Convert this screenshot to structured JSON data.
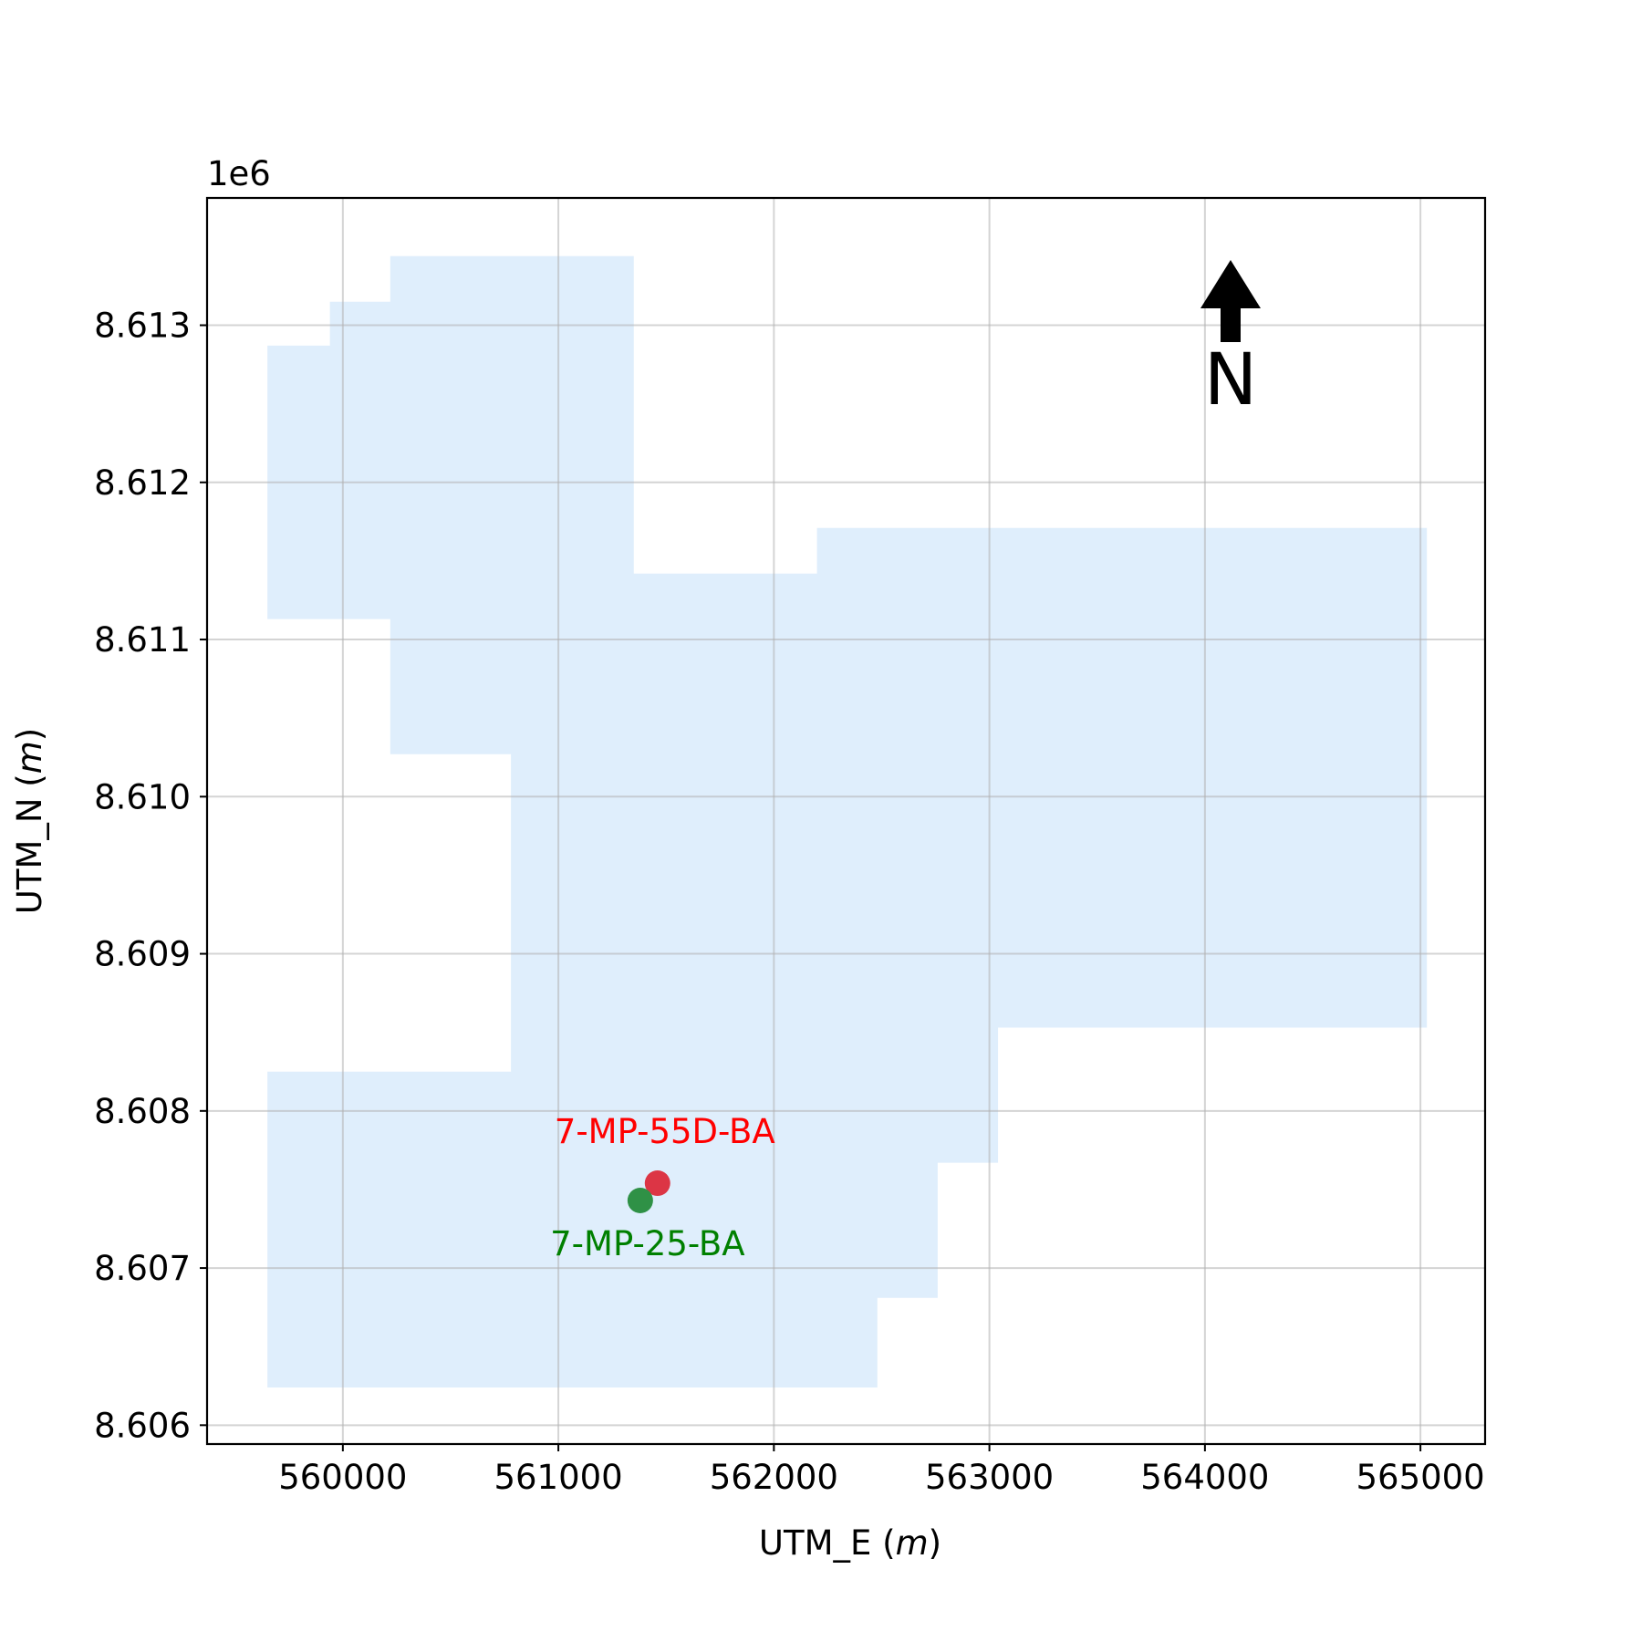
{
  "chart_data": {
    "type": "scatter",
    "xlabel": "UTM_E",
    "ylabel": "UTM_N",
    "unit": "m",
    "offset_label": "1e6",
    "xlim": [
      559370,
      565300
    ],
    "ylim": [
      8605880,
      8613810
    ],
    "x_ticks": [
      560000,
      561000,
      562000,
      563000,
      564000,
      565000
    ],
    "y_ticks": [
      8606000,
      8607000,
      8608000,
      8609000,
      8610000,
      8611000,
      8612000,
      8613000
    ],
    "y_tick_labels": [
      "8.606",
      "8.607",
      "8.608",
      "8.609",
      "8.610",
      "8.611",
      "8.612",
      "8.613"
    ],
    "grid": true,
    "north_arrow": {
      "label": "N"
    },
    "area": {
      "color": "#dfeefc",
      "polygon": [
        [
          559650,
          8612870
        ],
        [
          559940,
          8612870
        ],
        [
          559940,
          8613150
        ],
        [
          560220,
          8613150
        ],
        [
          560220,
          8613440
        ],
        [
          561350,
          8613440
        ],
        [
          561350,
          8611420
        ],
        [
          562200,
          8611420
        ],
        [
          562200,
          8611710
        ],
        [
          565030,
          8611710
        ],
        [
          565030,
          8608530
        ],
        [
          563040,
          8608530
        ],
        [
          563040,
          8607670
        ],
        [
          562760,
          8607670
        ],
        [
          562760,
          8606810
        ],
        [
          562480,
          8606810
        ],
        [
          562480,
          8606240
        ],
        [
          559650,
          8606240
        ],
        [
          559650,
          8608250
        ],
        [
          560780,
          8608250
        ],
        [
          560780,
          8610270
        ],
        [
          560220,
          8610270
        ],
        [
          560220,
          8611130
        ],
        [
          559650,
          8611130
        ]
      ]
    },
    "points": [
      {
        "name": "7-MP-55D-BA",
        "x": 561460,
        "y": 8607540,
        "marker_color": "#dc3545",
        "label_color": "#ff0000",
        "label_position": "above"
      },
      {
        "name": "7-MP-25-BA",
        "x": 561380,
        "y": 8607430,
        "marker_color": "#2f9146",
        "label_color": "#008000",
        "label_position": "below"
      }
    ]
  }
}
